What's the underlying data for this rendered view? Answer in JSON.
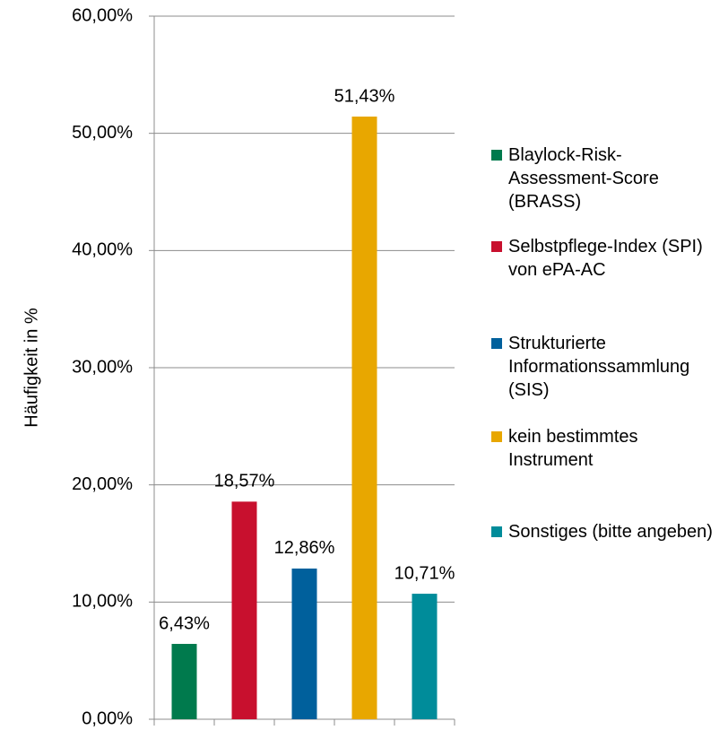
{
  "chart_data": {
    "type": "bar",
    "y_label": "Häufigkeit in %",
    "series": [
      {
        "name": "Blaylock-Risk-Assessment-Score (BRASS)",
        "color": "#007a4d",
        "values": [
          6.43
        ],
        "value_labels": [
          "6,43%"
        ]
      },
      {
        "name": "Selbstpflege-Index (SPI) von ePA-AC",
        "color": "#c8102e",
        "values": [
          18.57
        ],
        "value_labels": [
          "18,57%"
        ]
      },
      {
        "name": "Strukturierte Informationssammlung (SIS)",
        "color": "#00609c",
        "values": [
          12.86
        ],
        "value_labels": [
          "12,86%"
        ]
      },
      {
        "name": "kein bestimmtes Instrument",
        "color": "#e8a700",
        "values": [
          51.43
        ],
        "value_labels": [
          "51,43%"
        ]
      },
      {
        "name": "Sonstiges (bitte angeben)",
        "color": "#008c9a",
        "values": [
          10.71
        ],
        "value_labels": [
          "10,71%"
        ]
      }
    ],
    "ylim": [
      0,
      60
    ],
    "yticks": [
      {
        "value": 0,
        "label": "0,00%"
      },
      {
        "value": 10,
        "label": "10,00%"
      },
      {
        "value": 20,
        "label": "20,00%"
      },
      {
        "value": 30,
        "label": "30,00%"
      },
      {
        "value": 40,
        "label": "40,00%"
      },
      {
        "value": 50,
        "label": "50,00%"
      },
      {
        "value": 60,
        "label": "60,00%"
      }
    ],
    "grid": true
  }
}
